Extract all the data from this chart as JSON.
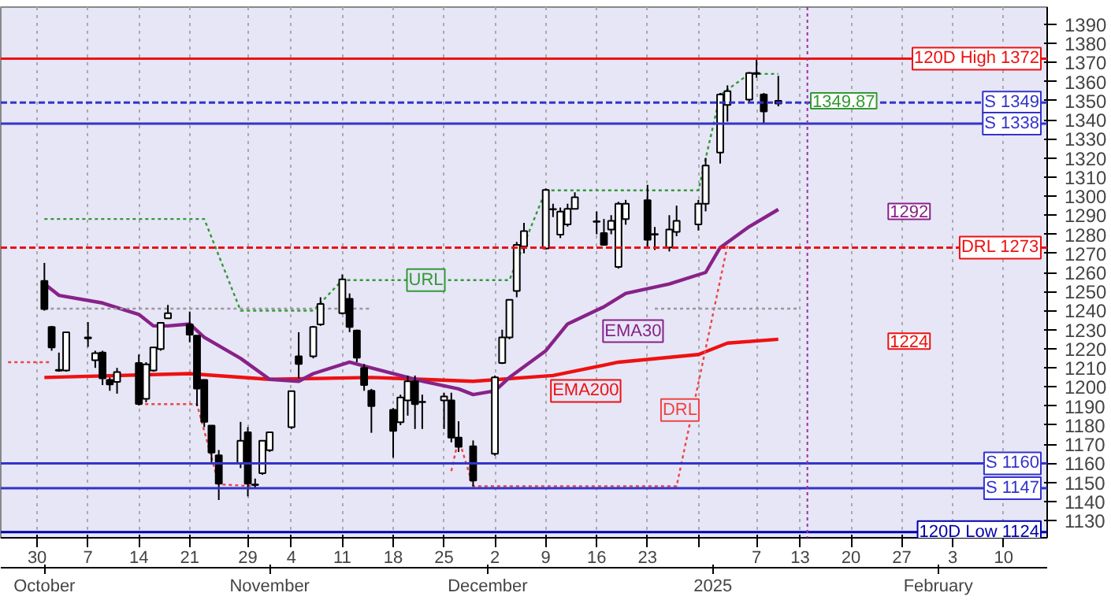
{
  "chart_data": {
    "type": "candlestick",
    "x": [
      "2024-10-01",
      "2024-10-02",
      "2024-10-03",
      "2024-10-04",
      "2024-10-07",
      "2024-10-08",
      "2024-10-09",
      "2024-10-10",
      "2024-10-11",
      "2024-10-14",
      "2024-10-15",
      "2024-10-16",
      "2024-10-17",
      "2024-10-18",
      "2024-10-21",
      "2024-10-22",
      "2024-10-23",
      "2024-10-24",
      "2024-10-25",
      "2024-10-28",
      "2024-10-29",
      "2024-10-30",
      "2024-10-31",
      "2024-11-01",
      "2024-11-04",
      "2024-11-05",
      "2024-11-07",
      "2024-11-08",
      "2024-11-11",
      "2024-11-12",
      "2024-11-13",
      "2024-11-14",
      "2024-11-15",
      "2024-11-18",
      "2024-11-19",
      "2024-11-20",
      "2024-11-21",
      "2024-11-22",
      "2024-11-25",
      "2024-11-26",
      "2024-11-27",
      "2024-11-29",
      "2024-12-02",
      "2024-12-03",
      "2024-12-04",
      "2024-12-05",
      "2024-12-06",
      "2024-12-09",
      "2024-12-10",
      "2024-12-11",
      "2024-12-12",
      "2024-12-13",
      "2024-12-16",
      "2024-12-17",
      "2024-12-18",
      "2024-12-19",
      "2024-12-20",
      "2024-12-23",
      "2024-12-24",
      "2024-12-26",
      "2024-12-27",
      "2024-12-30",
      "2024-12-31",
      "2025-01-02",
      "2025-01-03",
      "2025-01-06",
      "2025-01-07",
      "2025-01-08",
      "2025-01-10"
    ],
    "ohlc": [
      [
        1255.6,
        1265,
        1240,
        1240.8
      ],
      [
        1231.4,
        1232,
        1219,
        1220.7
      ],
      [
        1209,
        1218,
        1208,
        1208.5
      ],
      [
        1208.6,
        1229,
        1208,
        1228.7
      ],
      [
        1226,
        1234,
        1221,
        1225.5
      ],
      [
        1214,
        1219,
        1210,
        1217.7
      ],
      [
        1218,
        1219,
        1201,
        1204.5
      ],
      [
        1203.7,
        1205,
        1198,
        1201.3
      ],
      [
        1202.7,
        1210,
        1196.5,
        1207.8
      ],
      [
        1212.6,
        1217,
        1190.3,
        1191.1
      ],
      [
        1193.8,
        1213,
        1192,
        1211.8
      ],
      [
        1208.6,
        1221,
        1208,
        1220.7
      ],
      [
        1219.9,
        1234,
        1219,
        1233.6
      ],
      [
        1236,
        1243,
        1236,
        1238.7
      ],
      [
        1232.8,
        1239.5,
        1223.4,
        1227.4
      ],
      [
        1226.9,
        1227,
        1190,
        1199.2
      ],
      [
        1203.7,
        1204,
        1179,
        1181.7
      ],
      [
        1179.8,
        1180,
        1160,
        1165.6
      ],
      [
        1164.2,
        1167,
        1140.8,
        1149.4
      ],
      [
        1160.2,
        1181.7,
        1157.5,
        1171.8
      ],
      [
        1176.3,
        1179,
        1142.7,
        1149.4
      ],
      [
        1148.6,
        1152,
        1146.8,
        1148.9
      ],
      [
        1154.8,
        1172,
        1154,
        1171.8
      ],
      [
        1166.9,
        1176.5,
        1166,
        1176.3
      ],
      [
        1179,
        1198,
        1178,
        1197.8
      ],
      [
        1216.1,
        1228.7,
        1204.5,
        1212.1
      ],
      [
        1216.1,
        1232,
        1215,
        1231.4
      ],
      [
        1232.8,
        1247,
        1232,
        1243.5
      ],
      [
        1238.7,
        1259,
        1238,
        1256.4
      ],
      [
        1246.2,
        1249,
        1228.7,
        1231.4
      ],
      [
        1229.6,
        1230,
        1213,
        1215.3
      ],
      [
        1210,
        1212,
        1198,
        1201
      ],
      [
        1198,
        1199,
        1176,
        1190
      ],
      [
        1188,
        1189,
        1163,
        1177
      ],
      [
        1181.5,
        1196,
        1180,
        1194.5
      ],
      [
        1193,
        1206,
        1185,
        1203
      ],
      [
        1203,
        1206,
        1178,
        1191
      ],
      [
        1192,
        1196,
        1178,
        1192.3
      ],
      [
        1193,
        1197,
        1178,
        1195
      ],
      [
        1193,
        1197,
        1171,
        1173.5
      ],
      [
        1173.5,
        1182,
        1166,
        1168.6
      ],
      [
        1169,
        1172,
        1148,
        1151
      ],
      [
        1165,
        1206,
        1164,
        1205
      ],
      [
        1212.6,
        1230,
        1212,
        1226
      ],
      [
        1226,
        1246,
        1225,
        1245.7
      ],
      [
        1250.3,
        1276,
        1247,
        1274.4
      ],
      [
        1273.6,
        1286,
        1270,
        1281.7
      ],
      [
        1272.6,
        1304,
        1272,
        1303.2
      ],
      [
        1293,
        1296,
        1289,
        1293.2
      ],
      [
        1279.8,
        1294,
        1278,
        1291.9
      ],
      [
        1285.2,
        1296,
        1284,
        1293.3
      ],
      [
        1293.3,
        1302,
        1293,
        1299.4
      ],
      [
        1286.5,
        1292,
        1280,
        1286.8
      ],
      [
        1280.6,
        1288,
        1274,
        1274.4
      ],
      [
        1282.5,
        1290,
        1280,
        1287
      ],
      [
        1262.9,
        1297,
        1262,
        1296
      ],
      [
        1287.9,
        1298,
        1285,
        1296
      ],
      [
        1297.8,
        1305.9,
        1273,
        1277.1
      ],
      [
        1279.8,
        1283.8,
        1271.8,
        1280.1
      ],
      [
        1273.1,
        1290,
        1271,
        1282.5
      ],
      [
        1281.2,
        1295,
        1279,
        1287
      ],
      [
        1285.2,
        1298,
        1282,
        1296
      ],
      [
        1296,
        1320,
        1292,
        1316
      ],
      [
        1322.8,
        1354,
        1317,
        1353.2
      ],
      [
        1347.8,
        1358,
        1339,
        1355
      ],
      [
        1350.5,
        1365,
        1349,
        1364.5
      ],
      [
        1364,
        1372,
        1362,
        1364.5
      ],
      [
        1353.2,
        1354,
        1338,
        1344.3
      ],
      [
        1348.5,
        1363,
        1347,
        1349.87
      ]
    ],
    "series": [
      {
        "type": "line",
        "name": "EMA200",
        "color": "#ee1111",
        "line_style": "solid",
        "x": [
          "2024-10-01",
          "2024-10-21",
          "2024-11-01",
          "2024-11-15",
          "2024-11-22",
          "2024-11-29",
          "2024-12-10",
          "2024-12-19",
          "2024-12-30",
          "2025-01-03",
          "2025-01-10"
        ],
        "values": [
          1205,
          1207,
          1204,
          1205,
          1204,
          1203,
          1206,
          1213,
          1217,
          1223,
          1225
        ]
      },
      {
        "type": "line",
        "name": "EMA30",
        "color": "#882288",
        "line_style": "solid",
        "x": [
          "2024-10-01",
          "2024-10-03",
          "2024-10-09",
          "2024-10-14",
          "2024-10-16",
          "2024-10-18",
          "2024-10-21",
          "2024-10-23",
          "2024-10-28",
          "2024-11-01",
          "2024-11-05",
          "2024-11-07",
          "2024-11-12",
          "2024-11-14",
          "2024-11-19",
          "2024-11-22",
          "2024-11-27",
          "2024-11-29",
          "2024-12-02",
          "2024-12-04",
          "2024-12-09",
          "2024-12-12",
          "2024-12-17",
          "2024-12-20",
          "2024-12-26",
          "2024-12-31",
          "2025-01-02",
          "2025-01-06",
          "2025-01-10"
        ],
        "values": [
          1254,
          1248,
          1244,
          1238,
          1232,
          1232,
          1233,
          1226,
          1215,
          1204,
          1203,
          1207,
          1213,
          1211,
          1206,
          1203,
          1199,
          1196,
          1198,
          1205,
          1219,
          1233,
          1242,
          1249,
          1254,
          1260,
          1273,
          1284,
          1293
        ]
      },
      {
        "type": "line",
        "name": "URL",
        "color": "#339933",
        "line_style": "dotted",
        "x": [
          "2024-10-01",
          "2024-10-23",
          "2024-10-28",
          "2024-11-07",
          "2024-11-11",
          "2024-12-04",
          "2024-12-09",
          "2024-12-30",
          "2025-01-02",
          "2025-01-06",
          "2025-01-10"
        ],
        "values": [
          1288,
          1288,
          1240,
          1240,
          1256,
          1256,
          1303,
          1303,
          1353,
          1364,
          1364
        ]
      },
      {
        "type": "line",
        "name": "DRL",
        "color": "#ee4444",
        "line_style": "dotted",
        "x": [
          "2024-09-26",
          "2024-10-02",
          "2024-10-10",
          "2024-10-14",
          "2024-10-22",
          "2024-10-25",
          "2024-10-30",
          "2024-11-20",
          "2024-11-26",
          "2024-11-27",
          "2024-11-29",
          "2024-12-27",
          "2025-01-03"
        ],
        "values": [
          1213,
          1213,
          null,
          1191,
          1191,
          1149,
          1148,
          null,
          1156,
          1173,
          1148,
          1148,
          1274
        ]
      },
      {
        "type": "line",
        "color": "#999999",
        "line_style": "dotted",
        "x": [
          "2024-10-01",
          "2024-11-15",
          "2024-11-20",
          "2024-12-24",
          "2025-01-13"
        ],
        "values": [
          1241,
          1241,
          null,
          1241,
          1241
        ]
      }
    ],
    "ref_lines": [
      {
        "axis": "y",
        "value": 1372,
        "label": "120D High 1372",
        "color": "#ee1111",
        "line_style": "solid"
      },
      {
        "axis": "y",
        "value": 1349,
        "label": "S 1349",
        "color": "#3333cc",
        "line_style": "dashed"
      },
      {
        "axis": "y",
        "value": 1338,
        "label": "S 1338",
        "color": "#3333cc",
        "line_style": "solid"
      },
      {
        "axis": "y",
        "value": 1273,
        "label": "DRL 1273",
        "color": "#ee1111",
        "line_style": "dashed"
      },
      {
        "axis": "y",
        "value": 1160,
        "label": "S 1160",
        "color": "#3333cc",
        "line_style": "solid"
      },
      {
        "axis": "y",
        "value": 1147,
        "label": "S 1147",
        "color": "#3333cc",
        "line_style": "solid"
      },
      {
        "axis": "y",
        "value": 1124,
        "label": "120D Low 1124",
        "color": "#0000aa",
        "line_style": "solid"
      },
      {
        "axis": "x",
        "value": "2025-01-14",
        "color": "#993399",
        "line_style": "dotted"
      }
    ],
    "annotations": [
      {
        "text": "1292",
        "x": "2025-01-28",
        "y": 1292
      },
      {
        "text": "1224",
        "x": "2025-01-28",
        "y": 1224
      },
      {
        "text": "1349.87",
        "x": "2025-01-19",
        "y": 1349.87
      }
    ],
    "xlim": [
      "2024-09-25",
      "2025-02-16"
    ],
    "xticks": [
      {
        "value": "2024-09-30",
        "label": "30"
      },
      {
        "value": "2024-10-07",
        "label": "7"
      },
      {
        "value": "2024-10-14",
        "label": "14"
      },
      {
        "value": "2024-10-21",
        "label": "21"
      },
      {
        "value": "2024-10-29",
        "label": "29"
      },
      {
        "value": "2024-11-04",
        "label": "4"
      },
      {
        "value": "2024-11-11",
        "label": "11"
      },
      {
        "value": "2024-11-18",
        "label": "18"
      },
      {
        "value": "2024-11-25",
        "label": "25"
      },
      {
        "value": "2024-12-02",
        "label": "2"
      },
      {
        "value": "2024-12-09",
        "label": "9"
      },
      {
        "value": "2024-12-16",
        "label": "16"
      },
      {
        "value": "2024-12-23",
        "label": "23"
      },
      {
        "value": "2024-12-30",
        "label": null
      },
      {
        "value": "2025-01-07",
        "label": "7"
      },
      {
        "value": "2025-01-13",
        "label": "13"
      },
      {
        "value": "2025-01-20",
        "label": "20"
      },
      {
        "value": "2025-01-27",
        "label": "27"
      },
      {
        "value": "2025-02-03",
        "label": "3"
      },
      {
        "value": "2025-02-10",
        "label": "10"
      }
    ],
    "x2lim": [
      "2024-09-25",
      "2025-02-16"
    ],
    "x2ticks": [
      {
        "value": "2024-10-01",
        "label": "October"
      },
      {
        "value": "2024-11-01",
        "label": "November"
      },
      {
        "value": "2024-12-01",
        "label": "December"
      },
      {
        "value": "2025-01-01",
        "label": "2025"
      },
      {
        "value": "2025-02-01",
        "label": "February"
      }
    ],
    "ylim": [
      1121,
      1399
    ],
    "yticks": [
      1130,
      1140,
      1150,
      1160,
      1170,
      1180,
      1190,
      1200,
      1210,
      1220,
      1230,
      1240,
      1250,
      1260,
      1270,
      1280,
      1290,
      1300,
      1310,
      1320,
      1330,
      1340,
      1350,
      1360,
      1370,
      1380,
      1390
    ],
    "grid": "x"
  }
}
